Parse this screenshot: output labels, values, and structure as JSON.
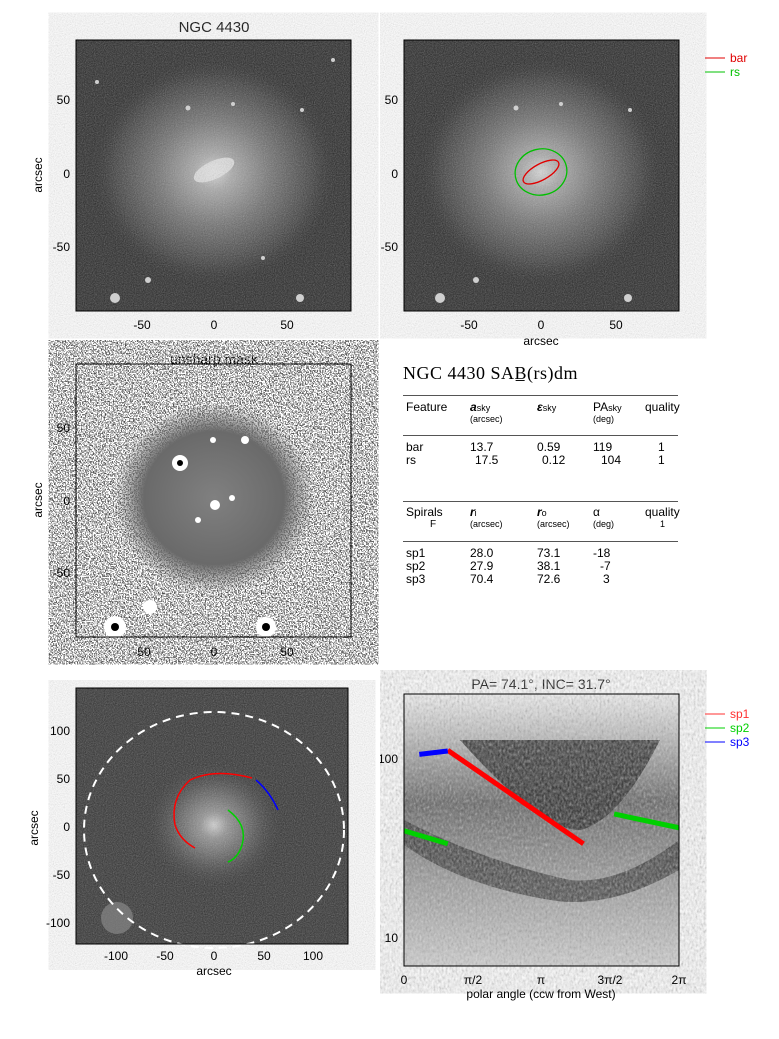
{
  "panels": {
    "p1": {
      "title": "NGC 4430",
      "ylabel": "arcsec",
      "xticks": [
        "-50",
        "0",
        "50"
      ],
      "yticks": [
        "50",
        "0",
        "-50"
      ]
    },
    "p2": {
      "xlabel": "arcsec",
      "xticks": [
        "-50",
        "0",
        "50"
      ],
      "yticks": [
        "50",
        "0",
        "-50"
      ],
      "legend": [
        {
          "label": "bar",
          "color": "#e00000"
        },
        {
          "label": "rs",
          "color": "#00c000"
        }
      ]
    },
    "p3": {
      "title": "unsharp mask",
      "ylabel": "arcsec",
      "xticks": [
        "-50",
        "0",
        "50"
      ],
      "yticks": [
        "50",
        "0",
        "-50"
      ]
    },
    "p5": {
      "xlabel": "arcsec",
      "ylabel": "arcsec",
      "xticks": [
        "-100",
        "-50",
        "0",
        "50",
        "100"
      ],
      "yticks": [
        "100",
        "50",
        "0",
        "-50",
        "-100"
      ]
    },
    "p6": {
      "title": "PA=  74.1°, INC=  31.7°",
      "xlabel": "polar angle (ccw from West)",
      "xticks": [
        "0",
        "π/2",
        "π",
        "3π/2",
        "2π"
      ],
      "yticks": [
        "100",
        "10"
      ],
      "legend": [
        {
          "label": "sp1",
          "color": "#ff3030"
        },
        {
          "label": "sp2",
          "color": "#00d000"
        },
        {
          "label": "sp3",
          "color": "#0000ff"
        }
      ]
    }
  },
  "table": {
    "title": "NGC 4430  SAB̲(rs)dm",
    "h1": {
      "feature": "Feature",
      "a": "a",
      "a_sub": "sky",
      "a_unit": "(arcsec)",
      "e": "ε",
      "e_sub": "sky",
      "pa": "PA",
      "pa_sub": "sky",
      "pa_unit": "(deg)",
      "q": "quality"
    },
    "bars": [
      {
        "name": "bar",
        "a": "13.7",
        "e": "0.59",
        "pa": "119",
        "q": "1"
      },
      {
        "name": "rs",
        "a": "17.5",
        "e": "0.12",
        "pa": "104",
        "q": "1"
      }
    ],
    "h2": {
      "feature": "Spirals",
      "flag": "F",
      "ri": "r",
      "ri_sub": "i",
      "ri_unit": "(arcsec)",
      "ro": "r",
      "ro_sub": "o",
      "ro_unit": "(arcsec)",
      "al": "α",
      "al_unit": "(deg)",
      "q": "quality",
      "qv": "1"
    },
    "spirals": [
      {
        "name": "sp1",
        "ri": "28.0",
        "ro": "73.1",
        "al": "-18"
      },
      {
        "name": "sp2",
        "ri": "27.9",
        "ro": "38.1",
        "al": "-7"
      },
      {
        "name": "sp3",
        "ri": "70.4",
        "ro": "72.6",
        "al": "3"
      }
    ]
  },
  "chart_data": [
    {
      "type": "image",
      "title": "NGC 4430",
      "ylabel": "arcsec",
      "xlim": [
        -95,
        95
      ],
      "ylim": [
        -95,
        95
      ]
    },
    {
      "type": "image",
      "xlabel": "arcsec",
      "xlim": [
        -95,
        95
      ],
      "ylim": [
        -95,
        95
      ],
      "overlays": [
        {
          "name": "bar",
          "a": 13.7,
          "ellipticity": 0.59,
          "pa": 119,
          "color": "#e00000"
        },
        {
          "name": "rs",
          "a": 17.5,
          "ellipticity": 0.12,
          "pa": 104,
          "color": "#00c000"
        }
      ]
    },
    {
      "type": "image",
      "title": "unsharp mask",
      "ylabel": "arcsec",
      "xlim": [
        -95,
        95
      ],
      "ylim": [
        -95,
        95
      ]
    },
    {
      "type": "table"
    },
    {
      "type": "image",
      "xlabel": "arcsec",
      "ylabel": "arcsec",
      "xlim": [
        -135,
        135
      ],
      "ylim": [
        -135,
        135
      ],
      "overlays": [
        {
          "name": "sp1",
          "color": "#ff0000"
        },
        {
          "name": "sp2",
          "color": "#00d000"
        },
        {
          "name": "sp3",
          "color": "#0000ff"
        },
        {
          "name": "disk",
          "r": 115,
          "style": "dashed",
          "color": "#ffffff"
        }
      ]
    },
    {
      "type": "line",
      "title": "PA=  74.1°, INC=  31.7°",
      "xlabel": "polar angle (ccw from West)",
      "xlim": [
        0,
        6.283
      ],
      "ylim": [
        8,
        130
      ],
      "yscale": "log",
      "series": [
        {
          "name": "sp1",
          "color": "#ff0000",
          "x": [
            1.0,
            4.1
          ],
          "y": [
            73,
            28
          ]
        },
        {
          "name": "sp2",
          "color": "#00d000",
          "x": [
            0.0,
            1.0
          ],
          "y": [
            32,
            28
          ]
        },
        {
          "name": "sp2",
          "color": "#00d000",
          "x": [
            4.8,
            6.28
          ],
          "y": [
            38,
            33
          ]
        },
        {
          "name": "sp3",
          "color": "#0000ff",
          "x": [
            0.35,
            1.0
          ],
          "y": [
            70,
            72.5
          ]
        }
      ]
    }
  ]
}
